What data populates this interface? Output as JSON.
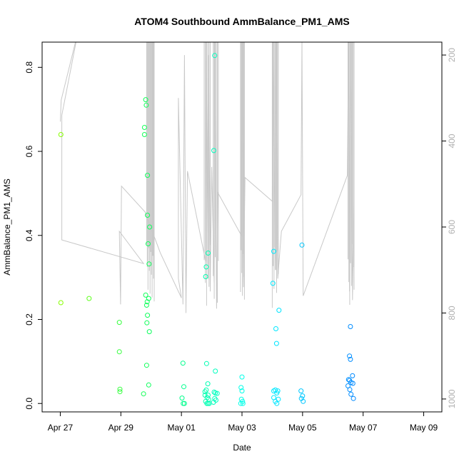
{
  "chart_data": {
    "type": "scatter",
    "title": "ATOM4 Southbound AmmBalance_PM1_AMS",
    "xlabel": "Date",
    "ylabel": "AmmBalance_PM1_AMS",
    "x_ticks": [
      "Apr 27",
      "Apr 29",
      "May 01",
      "May 03",
      "May 05",
      "May 07",
      "May 09"
    ],
    "xlim_days": [
      -0.6,
      12.6
    ],
    "ylim": [
      -0.02,
      0.86
    ],
    "y_ticks": [
      "0.0",
      "0.2",
      "0.4",
      "0.6",
      "0.8"
    ],
    "y_tick_values": [
      0,
      0.2,
      0.4,
      0.6,
      0.8
    ],
    "y2_ticks": [
      "200",
      "400",
      "600",
      "800",
      "1000"
    ],
    "y2_tick_values": [
      200,
      400,
      600,
      800,
      1000
    ],
    "y2lim": [
      170,
      1030
    ],
    "y2_reversed": true,
    "grid": false,
    "colors": {
      "track": "#c8c8c8",
      "axis": "#000000",
      "y2_tick_labels": "#b0b0b0",
      "point_gradient": [
        "#88ff00",
        "#00ff66",
        "#00ffff",
        "#0088ff"
      ]
    },
    "series": [
      {
        "points": [
          [
            0.02,
            0.24
          ],
          [
            0.02,
            0.64
          ],
          [
            0.95,
            0.25
          ],
          [
            1.95,
            0.193
          ],
          [
            1.95,
            0.123
          ],
          [
            1.97,
            0.034
          ],
          [
            1.97,
            0.028
          ],
          [
            2.78,
            0.657
          ],
          [
            2.78,
            0.64
          ],
          [
            2.82,
            0.723
          ],
          [
            2.84,
            0.71
          ],
          [
            2.88,
            0.543
          ],
          [
            2.88,
            0.448
          ],
          [
            2.95,
            0.42
          ],
          [
            2.9,
            0.38
          ],
          [
            2.93,
            0.332
          ],
          [
            2.82,
            0.258
          ],
          [
            2.85,
            0.234
          ],
          [
            2.87,
            0.242
          ],
          [
            2.92,
            0.25
          ],
          [
            2.88,
            0.21
          ],
          [
            2.86,
            0.192
          ],
          [
            2.94,
            0.171
          ],
          [
            2.85,
            0.091
          ],
          [
            2.92,
            0.044
          ],
          [
            2.75,
            0.023
          ],
          [
            4.05,
            0.096
          ],
          [
            4.08,
            0.04
          ],
          [
            4.02,
            0.013
          ],
          [
            4.06,
            0.0
          ],
          [
            4.1,
            0.0
          ],
          [
            4.88,
            0.358
          ],
          [
            4.82,
            0.325
          ],
          [
            4.8,
            0.302
          ],
          [
            4.83,
            0.095
          ],
          [
            4.87,
            0.047
          ],
          [
            4.78,
            0.028
          ],
          [
            4.82,
            0.032
          ],
          [
            4.88,
            0.02
          ],
          [
            4.85,
            0.014
          ],
          [
            4.9,
            0.01
          ],
          [
            4.8,
            0.005
          ],
          [
            4.84,
            0.0
          ],
          [
            4.88,
            0.0
          ],
          [
            4.92,
            0.0
          ],
          [
            4.78,
            0.02
          ],
          [
            5.1,
            0.828
          ],
          [
            5.07,
            0.602
          ],
          [
            5.12,
            0.077
          ],
          [
            5.08,
            0.027
          ],
          [
            5.12,
            0.025
          ],
          [
            5.18,
            0.024
          ],
          [
            5.1,
            0.012
          ],
          [
            5.14,
            0.008
          ],
          [
            5.06,
            0.003
          ],
          [
            6.0,
            0.063
          ],
          [
            5.97,
            0.038
          ],
          [
            6.0,
            0.03
          ],
          [
            5.98,
            0.01
          ],
          [
            6.02,
            0.005
          ],
          [
            5.96,
            0.0
          ],
          [
            6.03,
            0.0
          ],
          [
            7.05,
            0.362
          ],
          [
            7.02,
            0.286
          ],
          [
            7.22,
            0.222
          ],
          [
            7.12,
            0.178
          ],
          [
            7.14,
            0.143
          ],
          [
            7.05,
            0.03
          ],
          [
            7.1,
            0.032
          ],
          [
            7.18,
            0.03
          ],
          [
            7.15,
            0.025
          ],
          [
            7.05,
            0.014
          ],
          [
            7.2,
            0.01
          ],
          [
            7.1,
            0.005
          ],
          [
            7.15,
            0.0
          ],
          [
            7.98,
            0.377
          ],
          [
            7.95,
            0.03
          ],
          [
            8.0,
            0.018
          ],
          [
            7.96,
            0.012
          ],
          [
            8.02,
            0.005
          ],
          [
            9.58,
            0.183
          ],
          [
            9.55,
            0.113
          ],
          [
            9.58,
            0.105
          ],
          [
            9.65,
            0.066
          ],
          [
            9.52,
            0.057
          ],
          [
            9.55,
            0.055
          ],
          [
            9.6,
            0.05
          ],
          [
            9.66,
            0.048
          ],
          [
            9.5,
            0.042
          ],
          [
            9.56,
            0.033
          ],
          [
            9.6,
            0.022
          ],
          [
            9.68,
            0.012
          ]
        ]
      }
    ],
    "track": {
      "axis": "y2",
      "points": [
        [
          0.0,
          355
        ],
        [
          0.03,
          305
        ],
        [
          0.5,
          170
        ],
        [
          0.52,
          170
        ],
        [
          0.05,
          340
        ],
        [
          0.05,
          630
        ],
        [
          2.75,
          685
        ],
        [
          1.95,
          610
        ],
        [
          1.99,
          780
        ],
        [
          2.02,
          505
        ],
        [
          2.8,
          565
        ],
        [
          3.3,
          660
        ],
        [
          4.0,
          765
        ],
        [
          3.9,
          720
        ],
        [
          3.9,
          300
        ],
        [
          4.05,
          780
        ],
        [
          4.1,
          200
        ],
        [
          4.15,
          800
        ],
        [
          4.2,
          470
        ],
        [
          4.8,
          680
        ],
        [
          4.82,
          170
        ],
        [
          4.88,
          720
        ],
        [
          4.9,
          200
        ],
        [
          4.95,
          750
        ],
        [
          5.0,
          460
        ],
        [
          5.08,
          730
        ],
        [
          5.1,
          170
        ],
        [
          5.16,
          790
        ],
        [
          5.2,
          520
        ],
        [
          5.98,
          620
        ],
        [
          6.0,
          170
        ],
        [
          6.05,
          740
        ],
        [
          6.1,
          485
        ],
        [
          7.0,
          540
        ],
        [
          7.02,
          170
        ],
        [
          7.1,
          700
        ],
        [
          7.12,
          170
        ],
        [
          7.18,
          720
        ],
        [
          7.3,
          610
        ],
        [
          7.95,
          525
        ],
        [
          7.98,
          170
        ],
        [
          8.02,
          760
        ],
        [
          9.48,
          480
        ],
        [
          9.52,
          170
        ],
        [
          9.55,
          750
        ],
        [
          9.6,
          170
        ],
        [
          9.65,
          770
        ],
        [
          9.7,
          540
        ]
      ],
      "dense_spikes": [
        {
          "start": 2.85,
          "end": 3.1,
          "count": 12
        },
        {
          "start": 4.75,
          "end": 4.95,
          "count": 6
        },
        {
          "start": 5.05,
          "end": 5.22,
          "count": 6
        },
        {
          "start": 5.95,
          "end": 6.08,
          "count": 7
        },
        {
          "start": 7.0,
          "end": 7.2,
          "count": 8
        },
        {
          "start": 9.5,
          "end": 9.7,
          "count": 8
        }
      ]
    }
  }
}
